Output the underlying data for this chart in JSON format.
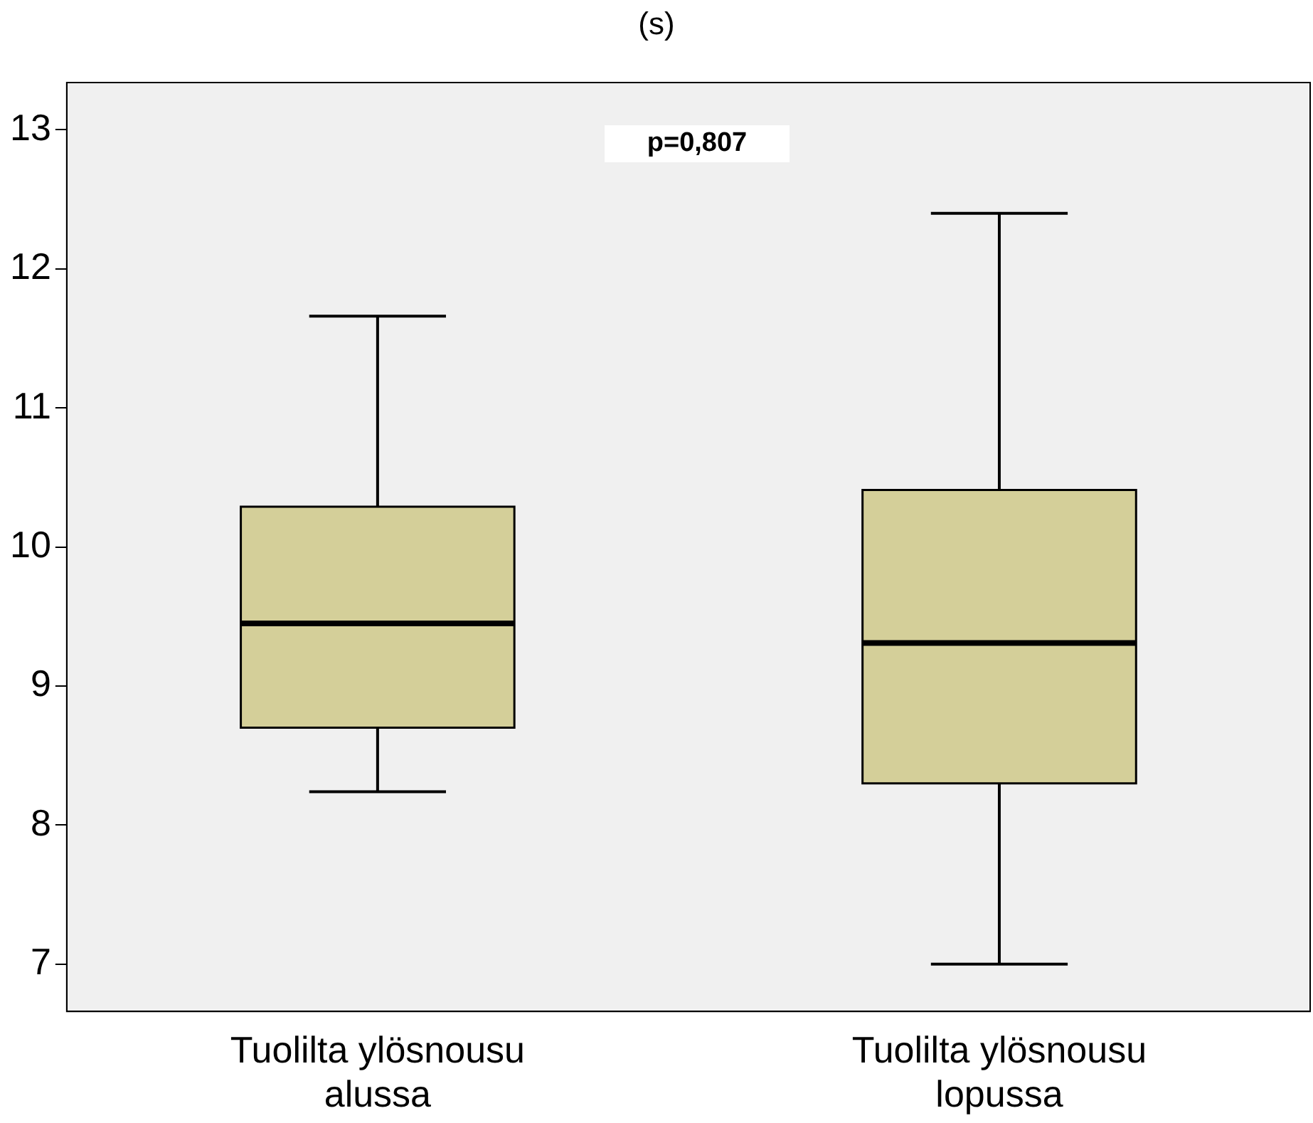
{
  "chart_data": {
    "type": "box",
    "title": "(s)",
    "categories": [
      "Tuolilta ylösnousu alussa",
      "Tuolilta ylösnousu lopussa"
    ],
    "boxes": [
      {
        "low": 8.24,
        "q1": 8.7,
        "median": 9.45,
        "q3": 10.29,
        "high": 11.66
      },
      {
        "low": 7.0,
        "q1": 8.3,
        "median": 9.31,
        "q3": 10.41,
        "high": 12.4
      }
    ],
    "color": "#d4cf99",
    "ylim": [
      6.66,
      13.34
    ],
    "yticks": [
      7,
      8,
      9,
      10,
      11,
      12,
      13
    ],
    "grid": false,
    "annotations": [
      "p=0,807"
    ]
  }
}
